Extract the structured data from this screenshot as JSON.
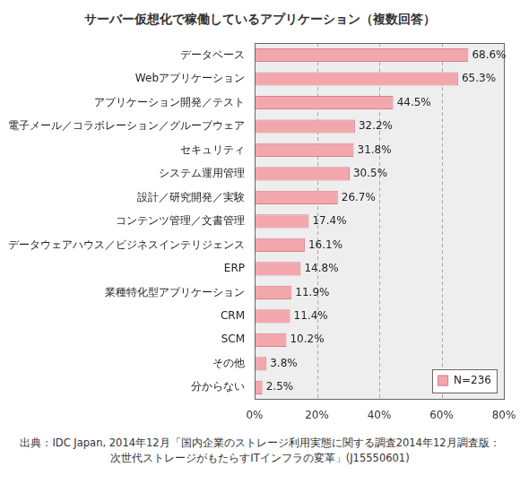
{
  "chart_data": {
    "type": "bar",
    "orientation": "horizontal",
    "title": "サーバー仮想化で稼働しているアプリケーション（複数回答）",
    "categories": [
      "データベース",
      "Webアプリケーション",
      "アプリケーション開発／テスト",
      "電子メール／コラボレーション／グループウェア",
      "セキュリティ",
      "システム運用管理",
      "設計／研究開発／実験",
      "コンテンツ管理／文書管理",
      "データウェアハウス／ビジネスインテリジェンス",
      "ERP",
      "業種特化型アプリケーション",
      "CRM",
      "SCM",
      "その他",
      "分からない"
    ],
    "series": [
      {
        "name": "N=236",
        "color": "#f2a7ad",
        "values": [
          68.6,
          65.3,
          44.5,
          32.2,
          31.8,
          30.5,
          26.7,
          17.4,
          16.1,
          14.8,
          11.9,
          11.4,
          10.2,
          3.8,
          2.5
        ],
        "value_labels": [
          "68.6%",
          "65.3%",
          "44.5%",
          "32.2%",
          "31.8%",
          "30.5%",
          "26.7%",
          "17.4%",
          "16.1%",
          "14.8%",
          "11.9%",
          "11.4%",
          "10.2%",
          "3.8%",
          "2.5%"
        ]
      }
    ],
    "xlim": [
      0,
      80
    ],
    "xticks": [
      {
        "value": 0,
        "label": "0%"
      },
      {
        "value": 20,
        "label": "20%"
      },
      {
        "value": 40,
        "label": "40%"
      },
      {
        "value": 60,
        "label": "60%"
      },
      {
        "value": 80,
        "label": "80%"
      }
    ],
    "grid": true,
    "legend": "lower right",
    "data_labels": true,
    "annotations": [
      "出典：IDC Japan, 2014年12月「国内企業のストレージ利用実態に関する調査2014年12月調査版：",
      "次世代ストレージがもたらすITインフラの変革」(J15550601)"
    ]
  }
}
